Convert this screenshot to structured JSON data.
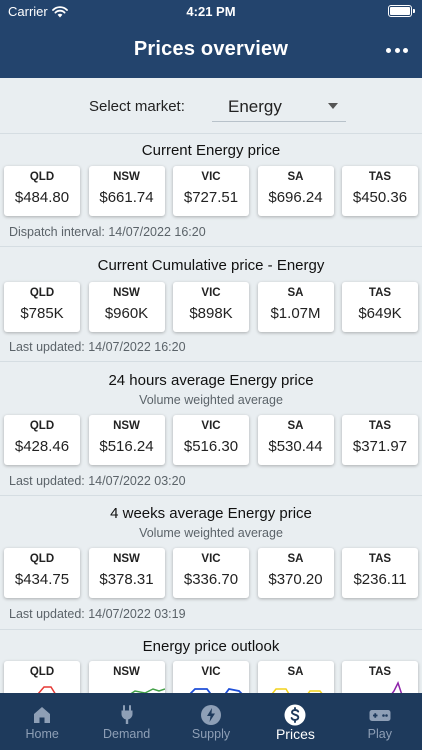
{
  "status_bar": {
    "carrier": "Carrier",
    "time": "4:21 PM"
  },
  "header": {
    "title": "Prices overview"
  },
  "market": {
    "label": "Select market:",
    "value": "Energy"
  },
  "sections": [
    {
      "title": "Current Energy price",
      "cards": [
        {
          "region": "QLD",
          "value": "$484.80"
        },
        {
          "region": "NSW",
          "value": "$661.74"
        },
        {
          "region": "VIC",
          "value": "$727.51"
        },
        {
          "region": "SA",
          "value": "$696.24"
        },
        {
          "region": "TAS",
          "value": "$450.36"
        }
      ],
      "footer": "Dispatch interval: 14/07/2022 16:20"
    },
    {
      "title": "Current Cumulative price - Energy",
      "cards": [
        {
          "region": "QLD",
          "value": "$785K"
        },
        {
          "region": "NSW",
          "value": "$960K"
        },
        {
          "region": "VIC",
          "value": "$898K"
        },
        {
          "region": "SA",
          "value": "$1.07M"
        },
        {
          "region": "TAS",
          "value": "$649K"
        }
      ],
      "footer": "Last updated: 14/07/2022 16:20"
    },
    {
      "title": "24 hours average Energy price",
      "subtitle": "Volume weighted average",
      "cards": [
        {
          "region": "QLD",
          "value": "$428.46"
        },
        {
          "region": "NSW",
          "value": "$516.24"
        },
        {
          "region": "VIC",
          "value": "$516.30"
        },
        {
          "region": "SA",
          "value": "$530.44"
        },
        {
          "region": "TAS",
          "value": "$371.97"
        }
      ],
      "footer": "Last updated: 14/07/2022 03:20"
    },
    {
      "title": "4 weeks average Energy price",
      "subtitle": "Volume weighted average",
      "cards": [
        {
          "region": "QLD",
          "value": "$434.75"
        },
        {
          "region": "NSW",
          "value": "$378.31"
        },
        {
          "region": "VIC",
          "value": "$336.70"
        },
        {
          "region": "SA",
          "value": "$370.20"
        },
        {
          "region": "TAS",
          "value": "$236.11"
        }
      ],
      "footer": "Last updated: 14/07/2022 03:19"
    }
  ],
  "outlook": {
    "title": "Energy price outlook",
    "cards": [
      {
        "region": "QLD",
        "color": "#e53935"
      },
      {
        "region": "NSW",
        "color": "#43a047"
      },
      {
        "region": "VIC",
        "color": "#1e4fd8"
      },
      {
        "region": "SA",
        "color": "#f2d21b"
      },
      {
        "region": "TAS",
        "color": "#8e24aa"
      }
    ]
  },
  "tabs": [
    {
      "label": "Home",
      "icon": "home-icon"
    },
    {
      "label": "Demand",
      "icon": "plug-icon"
    },
    {
      "label": "Supply",
      "icon": "bolt-icon"
    },
    {
      "label": "Prices",
      "icon": "dollar-icon",
      "active": true
    },
    {
      "label": "Play",
      "icon": "gamepad-icon"
    }
  ],
  "colors": {
    "header": "#23446d",
    "tabbar": "#1e3a5c",
    "background": "#e9eef1"
  }
}
